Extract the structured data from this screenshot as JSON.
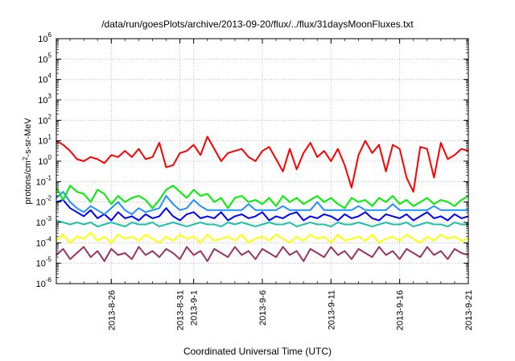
{
  "chart_data": {
    "type": "line",
    "title": "/data/run/goesPlots/archive/2013-09-20/flux/../flux/31daysMoonFluxes.txt",
    "xlabel": "Coordinated Universal Time (UTC)",
    "ylabel": {
      "prefix": "protons/cm",
      "sup": "2",
      "suffix": "-s-sr-MeV"
    },
    "yscale": "log",
    "ylim_exp": [
      -6,
      6
    ],
    "xlim_days": [
      22.0,
      52.0
    ],
    "x_ticks": [
      {
        "label": "2013-8-26",
        "day": 26
      },
      {
        "label": "2013-8-31",
        "day": 31
      },
      {
        "label": "2013-9-1",
        "day": 32
      },
      {
        "label": "2013-9-6",
        "day": 37
      },
      {
        "label": "2013-9-11",
        "day": 42
      },
      {
        "label": "2013-9-16",
        "day": 47
      },
      {
        "label": "2013-9-21",
        "day": 52
      }
    ],
    "y_tick_base": "10",
    "y_ticks_exp": [
      "-6",
      "-5",
      "-4",
      "-3",
      "-2",
      "-1",
      "0",
      "1",
      "2",
      "3",
      "4",
      "5",
      "6"
    ],
    "grid": true,
    "series_colors": [
      "#ff0000",
      "#00ee00",
      "#1e90ff",
      "#0000ff",
      "#20c0b0",
      "#ffff00",
      "#993366"
    ],
    "series": [
      {
        "color": "#ff0000",
        "y_exp": [
          1.0,
          0.8,
          0.5,
          0.1,
          0.0,
          0.2,
          0.1,
          -0.1,
          0.3,
          0.2,
          0.5,
          0.2,
          0.6,
          0.1,
          0.2,
          0.9,
          -0.3,
          -0.2,
          0.4,
          0.5,
          0.8,
          0.3,
          1.2,
          0.6,
          0.0,
          0.4,
          0.5,
          0.6,
          0.2,
          0.0,
          0.5,
          0.7,
          0.1,
          -0.5,
          0.6,
          -0.4,
          0.4,
          0.9,
          0.2,
          0.5,
          0.0,
          0.6,
          -0.2,
          -1.3,
          0.3,
          1.0,
          0.4,
          0.8,
          -0.5,
          0.8,
          0.6,
          -0.8,
          -1.5,
          0.7,
          0.6,
          -0.8,
          0.9,
          0.1,
          0.3,
          0.6,
          0.5
        ]
      },
      {
        "color": "#00ee00",
        "y_exp": [
          -1.3,
          -1.9,
          -1.2,
          -1.5,
          -1.6,
          -2.0,
          -1.4,
          -1.6,
          -2.1,
          -1.7,
          -2.0,
          -1.8,
          -1.7,
          -1.9,
          -2.3,
          -1.9,
          -1.4,
          -1.2,
          -1.5,
          -1.8,
          -1.4,
          -1.7,
          -1.6,
          -2.0,
          -1.8,
          -2.3,
          -1.8,
          -1.7,
          -2.0,
          -1.9,
          -2.1,
          -1.8,
          -2.2,
          -1.7,
          -2.0,
          -1.8,
          -2.1,
          -1.9,
          -1.7,
          -2.0,
          -1.8,
          -2.1,
          -2.3,
          -1.8,
          -2.0,
          -1.9,
          -2.2,
          -1.8,
          -2.0,
          -1.7,
          -2.1,
          -1.9,
          -2.2,
          -2.0,
          -1.8,
          -2.1,
          -1.9,
          -2.0,
          -2.2,
          -1.9,
          -1.7
        ]
      },
      {
        "color": "#1e90ff",
        "y_exp": [
          -1.8,
          -1.5,
          -2.0,
          -2.3,
          -2.5,
          -2.2,
          -2.4,
          -2.6,
          -2.3,
          -2.0,
          -2.4,
          -2.6,
          -2.3,
          -2.5,
          -2.4,
          -2.3,
          -1.7,
          -2.1,
          -2.4,
          -2.3,
          -1.9,
          -2.2,
          -2.4,
          -2.4,
          -2.4,
          -2.4,
          -2.4,
          -2.4,
          -2.1,
          -2.4,
          -2.4,
          -2.4,
          -2.4,
          -2.2,
          -2.4,
          -2.4,
          -2.4,
          -2.4,
          -2.0,
          -2.4,
          -2.4,
          -2.4,
          -2.4,
          -2.4,
          -2.2,
          -2.4,
          -2.4,
          -2.4,
          -2.4,
          -2.1,
          -2.4,
          -2.4,
          -2.4,
          -2.4,
          -2.4,
          -2.2,
          -2.4,
          -2.4,
          -2.4,
          -2.4,
          -2.4
        ]
      },
      {
        "color": "#0000ff",
        "y_exp": [
          -2.0,
          -1.9,
          -2.3,
          -2.5,
          -2.7,
          -2.4,
          -2.8,
          -2.6,
          -2.9,
          -2.5,
          -2.8,
          -2.7,
          -2.9,
          -2.6,
          -2.8,
          -2.7,
          -2.3,
          -2.7,
          -2.9,
          -2.6,
          -2.5,
          -2.8,
          -2.7,
          -2.8,
          -2.5,
          -2.9,
          -2.7,
          -2.6,
          -2.8,
          -2.7,
          -2.5,
          -2.9,
          -2.7,
          -2.8,
          -2.6,
          -2.5,
          -2.9,
          -2.7,
          -2.8,
          -2.6,
          -2.7,
          -2.9,
          -2.6,
          -2.8,
          -2.7,
          -2.5,
          -2.8,
          -2.9,
          -2.6,
          -2.7,
          -2.8,
          -2.6,
          -2.9,
          -2.7,
          -2.5,
          -2.8,
          -2.7,
          -2.9,
          -2.6,
          -2.8,
          -2.7
        ]
      },
      {
        "color": "#20c0b0",
        "y_exp": [
          -2.9,
          -3.0,
          -3.1,
          -3.0,
          -3.1,
          -3.0,
          -3.2,
          -3.1,
          -3.0,
          -3.1,
          -3.2,
          -3.0,
          -3.1,
          -3.1,
          -3.0,
          -3.2,
          -3.1,
          -3.0,
          -3.1,
          -3.2,
          -3.1,
          -3.0,
          -3.1,
          -3.1,
          -3.2,
          -3.0,
          -3.1,
          -3.0,
          -3.1,
          -3.2,
          -3.1,
          -3.0,
          -3.1,
          -3.1,
          -3.0,
          -3.2,
          -3.1,
          -3.0,
          -3.1,
          -3.1,
          -3.2,
          -3.0,
          -3.1,
          -3.1,
          -3.0,
          -3.1,
          -3.2,
          -3.1,
          -3.0,
          -3.1,
          -3.1,
          -3.0,
          -3.2,
          -3.1,
          -3.0,
          -3.1,
          -3.1,
          -3.2,
          -3.0,
          -3.1,
          -3.1
        ]
      },
      {
        "color": "#ffff00",
        "y_exp": [
          -3.9,
          -3.6,
          -4.0,
          -3.7,
          -3.8,
          -3.5,
          -3.9,
          -3.7,
          -4.0,
          -3.6,
          -3.8,
          -3.7,
          -3.9,
          -3.6,
          -3.8,
          -4.0,
          -3.7,
          -3.9,
          -3.6,
          -3.8,
          -3.7,
          -4.0,
          -3.6,
          -3.9,
          -3.8,
          -3.7,
          -3.9,
          -3.6,
          -4.0,
          -3.8,
          -3.7,
          -3.9,
          -3.6,
          -3.8,
          -4.0,
          -3.7,
          -3.9,
          -3.6,
          -3.8,
          -3.7,
          -4.0,
          -3.6,
          -3.9,
          -3.8,
          -3.7,
          -3.9,
          -3.6,
          -4.0,
          -3.8,
          -3.7,
          -3.9,
          -3.6,
          -3.8,
          -4.0,
          -3.7,
          -3.9,
          -3.6,
          -3.8,
          -3.7,
          -3.9,
          -3.8
        ]
      },
      {
        "color": "#993366",
        "y_exp": [
          -4.6,
          -4.3,
          -4.8,
          -4.5,
          -4.2,
          -4.7,
          -4.4,
          -4.9,
          -4.3,
          -4.6,
          -4.5,
          -4.8,
          -4.2,
          -4.6,
          -4.4,
          -4.7,
          -4.3,
          -4.5,
          -4.8,
          -4.2,
          -4.6,
          -4.4,
          -4.9,
          -4.3,
          -4.5,
          -4.7,
          -4.2,
          -4.6,
          -4.4,
          -4.8,
          -4.3,
          -4.5,
          -4.7,
          -4.2,
          -4.6,
          -4.4,
          -4.9,
          -4.3,
          -4.5,
          -4.7,
          -4.2,
          -4.6,
          -4.4,
          -4.8,
          -4.3,
          -4.5,
          -4.7,
          -4.2,
          -4.6,
          -4.4,
          -4.8,
          -4.3,
          -4.5,
          -4.7,
          -4.2,
          -4.6,
          -4.4,
          -4.8,
          -4.3,
          -4.5,
          -4.6
        ]
      }
    ]
  }
}
